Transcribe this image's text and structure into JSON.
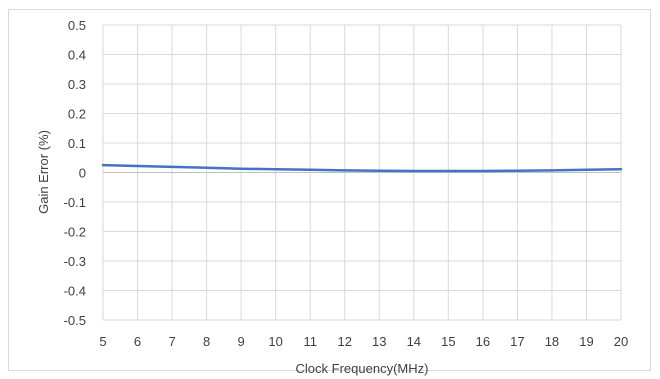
{
  "chart_data": {
    "type": "line",
    "title": "",
    "xlabel": "Clock Frequency(MHz)",
    "ylabel": "Gain Error (%)",
    "xlim": [
      5,
      20
    ],
    "ylim": [
      -0.5,
      0.5
    ],
    "x_ticks": [
      5,
      6,
      7,
      8,
      9,
      10,
      11,
      12,
      13,
      14,
      15,
      16,
      17,
      18,
      19,
      20
    ],
    "y_ticks": [
      "0.5",
      "0.4",
      "0.3",
      "0.2",
      "0.1",
      "0",
      "-0.1",
      "-0.2",
      "-0.3",
      "-0.4",
      "-0.5"
    ],
    "grid": true,
    "legend": "none",
    "series": [
      {
        "color": "#4472c4",
        "x": [
          5,
          6,
          7,
          8,
          9,
          10,
          11,
          12,
          13,
          14,
          15,
          16,
          17,
          18,
          19,
          20
        ],
        "y": [
          0.025,
          0.022,
          0.019,
          0.016,
          0.013,
          0.011,
          0.009,
          0.007,
          0.006,
          0.005,
          0.005,
          0.005,
          0.006,
          0.007,
          0.009,
          0.011
        ]
      }
    ]
  }
}
